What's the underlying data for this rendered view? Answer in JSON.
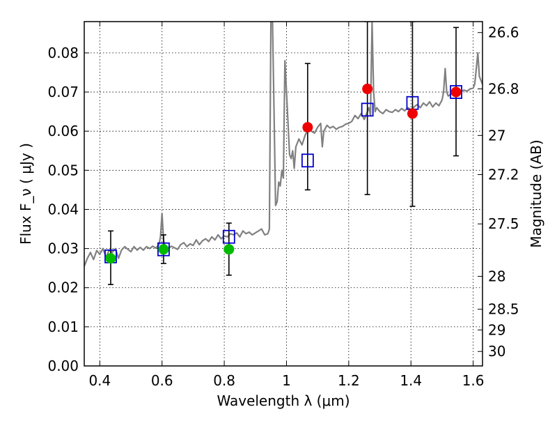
{
  "chart_data": {
    "type": "scatter",
    "title": "",
    "xlabel": "Wavelength  λ (μm)",
    "ylabel": "Flux  F_ν  ( μJy )",
    "ylabel_right": "Magnitude (AB)",
    "xlim": [
      0.35,
      1.63
    ],
    "ylim": [
      0.0,
      0.088
    ],
    "grid": true,
    "x_ticks": [
      0.4,
      0.6,
      0.8,
      1.0,
      1.2,
      1.4,
      1.6
    ],
    "x_tick_labels": [
      "0.4",
      "0.6",
      "0.8",
      "1",
      "1.2",
      "1.4",
      "1.6"
    ],
    "y_ticks": [
      0.0,
      0.01,
      0.02,
      0.03,
      0.04,
      0.05,
      0.06,
      0.07,
      0.08
    ],
    "y_tick_labels": [
      "0.00",
      "0.01",
      "0.02",
      "0.03",
      "0.04",
      "0.05",
      "0.06",
      "0.07",
      "0.08"
    ],
    "right_ticks": [
      {
        "flux": 0.0852,
        "label": "26.6"
      },
      {
        "flux": 0.0708,
        "label": "26.8"
      },
      {
        "flux": 0.0589,
        "label": "27"
      },
      {
        "flux": 0.0489,
        "label": "27.2"
      },
      {
        "flux": 0.0363,
        "label": "27.5"
      },
      {
        "flux": 0.0229,
        "label": "28"
      },
      {
        "flux": 0.0145,
        "label": "28.5"
      },
      {
        "flux": 0.0092,
        "label": "29"
      },
      {
        "flux": 0.0037,
        "label": "30"
      }
    ],
    "series": [
      {
        "kind": "line",
        "color": "#808080",
        "points": [
          [
            0.35,
            0.0255
          ],
          [
            0.36,
            0.0275
          ],
          [
            0.37,
            0.029
          ],
          [
            0.38,
            0.0272
          ],
          [
            0.39,
            0.0295
          ],
          [
            0.4,
            0.0285
          ],
          [
            0.41,
            0.03
          ],
          [
            0.42,
            0.0278
          ],
          [
            0.43,
            0.0296
          ],
          [
            0.44,
            0.029
          ],
          [
            0.45,
            0.03
          ],
          [
            0.46,
            0.0275
          ],
          [
            0.47,
            0.0296
          ],
          [
            0.48,
            0.0305
          ],
          [
            0.49,
            0.0298
          ],
          [
            0.5,
            0.0292
          ],
          [
            0.51,
            0.0305
          ],
          [
            0.52,
            0.0296
          ],
          [
            0.53,
            0.0303
          ],
          [
            0.54,
            0.0296
          ],
          [
            0.55,
            0.0305
          ],
          [
            0.56,
            0.03
          ],
          [
            0.57,
            0.0306
          ],
          [
            0.58,
            0.0301
          ],
          [
            0.59,
            0.031
          ],
          [
            0.595,
            0.033
          ],
          [
            0.6,
            0.039
          ],
          [
            0.605,
            0.032
          ],
          [
            0.61,
            0.0305
          ],
          [
            0.62,
            0.03
          ],
          [
            0.63,
            0.0306
          ],
          [
            0.64,
            0.0302
          ],
          [
            0.65,
            0.0298
          ],
          [
            0.66,
            0.031
          ],
          [
            0.67,
            0.0315
          ],
          [
            0.68,
            0.0305
          ],
          [
            0.69,
            0.0312
          ],
          [
            0.7,
            0.0308
          ],
          [
            0.71,
            0.0322
          ],
          [
            0.72,
            0.031
          ],
          [
            0.73,
            0.032
          ],
          [
            0.74,
            0.0325
          ],
          [
            0.75,
            0.0318
          ],
          [
            0.76,
            0.033
          ],
          [
            0.77,
            0.0322
          ],
          [
            0.78,
            0.0335
          ],
          [
            0.79,
            0.0325
          ],
          [
            0.8,
            0.0332
          ],
          [
            0.81,
            0.033
          ],
          [
            0.82,
            0.0338
          ],
          [
            0.83,
            0.0335
          ],
          [
            0.84,
            0.034
          ],
          [
            0.85,
            0.033
          ],
          [
            0.86,
            0.0345
          ],
          [
            0.87,
            0.0338
          ],
          [
            0.88,
            0.0342
          ],
          [
            0.89,
            0.0335
          ],
          [
            0.9,
            0.034
          ],
          [
            0.91,
            0.0345
          ],
          [
            0.92,
            0.035
          ],
          [
            0.93,
            0.0335
          ],
          [
            0.94,
            0.0338
          ],
          [
            0.945,
            0.035
          ],
          [
            0.95,
            0.088
          ],
          [
            0.955,
            0.088
          ],
          [
            0.96,
            0.065
          ],
          [
            0.965,
            0.041
          ],
          [
            0.97,
            0.042
          ],
          [
            0.975,
            0.047
          ],
          [
            0.98,
            0.046
          ],
          [
            0.985,
            0.05
          ],
          [
            0.99,
            0.048
          ],
          [
            0.995,
            0.078
          ],
          [
            1.0,
            0.07
          ],
          [
            1.005,
            0.062
          ],
          [
            1.01,
            0.054
          ],
          [
            1.015,
            0.053
          ],
          [
            1.02,
            0.055
          ],
          [
            1.025,
            0.0505
          ],
          [
            1.03,
            0.056
          ],
          [
            1.04,
            0.058
          ],
          [
            1.05,
            0.0565
          ],
          [
            1.06,
            0.059
          ],
          [
            1.07,
            0.0605
          ],
          [
            1.08,
            0.06
          ],
          [
            1.09,
            0.0595
          ],
          [
            1.1,
            0.061
          ],
          [
            1.11,
            0.062
          ],
          [
            1.115,
            0.056
          ],
          [
            1.12,
            0.06
          ],
          [
            1.13,
            0.0615
          ],
          [
            1.14,
            0.0608
          ],
          [
            1.15,
            0.0612
          ],
          [
            1.16,
            0.0605
          ],
          [
            1.17,
            0.061
          ],
          [
            1.18,
            0.0612
          ],
          [
            1.19,
            0.0618
          ],
          [
            1.2,
            0.062
          ],
          [
            1.21,
            0.0625
          ],
          [
            1.22,
            0.064
          ],
          [
            1.23,
            0.0632
          ],
          [
            1.24,
            0.0645
          ],
          [
            1.25,
            0.063
          ],
          [
            1.26,
            0.065
          ],
          [
            1.265,
            0.066
          ],
          [
            1.27,
            0.064
          ],
          [
            1.275,
            0.088
          ],
          [
            1.28,
            0.07
          ],
          [
            1.285,
            0.065
          ],
          [
            1.29,
            0.066
          ],
          [
            1.3,
            0.065
          ],
          [
            1.31,
            0.0645
          ],
          [
            1.32,
            0.0655
          ],
          [
            1.33,
            0.065
          ],
          [
            1.34,
            0.0648
          ],
          [
            1.35,
            0.0655
          ],
          [
            1.36,
            0.065
          ],
          [
            1.37,
            0.0658
          ],
          [
            1.38,
            0.0652
          ],
          [
            1.39,
            0.066
          ],
          [
            1.4,
            0.0655
          ],
          [
            1.41,
            0.0662
          ],
          [
            1.42,
            0.0668
          ],
          [
            1.43,
            0.066
          ],
          [
            1.44,
            0.0672
          ],
          [
            1.45,
            0.0665
          ],
          [
            1.46,
            0.0675
          ],
          [
            1.47,
            0.0662
          ],
          [
            1.48,
            0.0672
          ],
          [
            1.49,
            0.0665
          ],
          [
            1.5,
            0.068
          ],
          [
            1.505,
            0.07
          ],
          [
            1.51,
            0.076
          ],
          [
            1.515,
            0.07
          ],
          [
            1.52,
            0.069
          ],
          [
            1.53,
            0.0695
          ],
          [
            1.54,
            0.07
          ],
          [
            1.55,
            0.0698
          ],
          [
            1.56,
            0.07
          ],
          [
            1.57,
            0.0705
          ],
          [
            1.58,
            0.0702
          ],
          [
            1.59,
            0.0708
          ],
          [
            1.6,
            0.071
          ],
          [
            1.605,
            0.072
          ],
          [
            1.61,
            0.076
          ],
          [
            1.615,
            0.08
          ],
          [
            1.62,
            0.074
          ],
          [
            1.63,
            0.072
          ]
        ]
      },
      {
        "kind": "errorbar",
        "color": "#000000",
        "points": [
          {
            "x": 0.435,
            "y": 0.0275,
            "lo": 0.0208,
            "hi": 0.0345
          },
          {
            "x": 0.605,
            "y": 0.0298,
            "lo": 0.0262,
            "hi": 0.0335
          },
          {
            "x": 0.815,
            "y": 0.033,
            "lo": 0.0232,
            "hi": 0.0365
          },
          {
            "x": 1.068,
            "y": 0.061,
            "lo": 0.045,
            "hi": 0.0773
          },
          {
            "x": 1.26,
            "y": 0.0708,
            "lo": 0.0438,
            "hi": 0.088
          },
          {
            "x": 1.405,
            "y": 0.0645,
            "lo": 0.0408,
            "hi": 0.088
          },
          {
            "x": 1.545,
            "y": 0.07,
            "lo": 0.0537,
            "hi": 0.0865
          }
        ]
      },
      {
        "kind": "square",
        "color": "#0000cc",
        "points": [
          [
            0.435,
            0.028
          ],
          [
            0.605,
            0.0298
          ],
          [
            0.815,
            0.033
          ],
          [
            1.068,
            0.0525
          ],
          [
            1.26,
            0.0655
          ],
          [
            1.405,
            0.0672
          ],
          [
            1.545,
            0.07
          ]
        ]
      },
      {
        "kind": "circle",
        "color": "#00bb00",
        "points": [
          [
            0.435,
            0.0275
          ],
          [
            0.605,
            0.0298
          ],
          [
            0.815,
            0.0298
          ]
        ]
      },
      {
        "kind": "circle",
        "color": "#ee0000",
        "points": [
          [
            1.068,
            0.061
          ],
          [
            1.26,
            0.0708
          ],
          [
            1.405,
            0.0645
          ],
          [
            1.545,
            0.07
          ]
        ]
      }
    ]
  }
}
